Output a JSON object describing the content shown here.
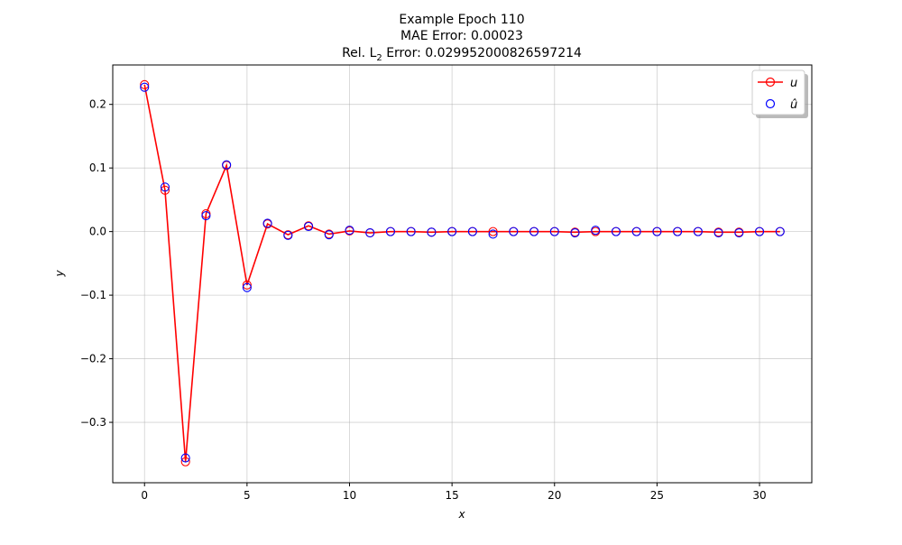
{
  "chart_data": {
    "type": "line",
    "title_lines": [
      "Example Epoch 110",
      "MAE Error: 0.00023",
      "Rel. L",
      "2",
      " Error: 0.029952000826597214"
    ],
    "xlabel": "x",
    "ylabel": "y",
    "xlim": [
      -1.55,
      32.55
    ],
    "ylim": [
      -0.395,
      0.262
    ],
    "x_ticks": [
      0,
      5,
      10,
      15,
      20,
      25,
      30
    ],
    "x_tick_labels": [
      "0",
      "5",
      "10",
      "15",
      "20",
      "25",
      "30"
    ],
    "y_ticks": [
      -0.3,
      -0.2,
      -0.1,
      0.0,
      0.1,
      0.2
    ],
    "y_tick_labels": [
      "−0.3",
      "−0.2",
      "−0.1",
      "0.0",
      "0.1",
      "0.2"
    ],
    "grid": true,
    "legend_position": "top-right",
    "x": [
      0,
      1,
      2,
      3,
      4,
      5,
      6,
      7,
      8,
      9,
      10,
      11,
      12,
      13,
      14,
      15,
      16,
      17,
      18,
      19,
      20,
      21,
      22,
      23,
      24,
      25,
      26,
      27,
      28,
      29,
      30,
      31
    ],
    "series": [
      {
        "name": "u",
        "style": "line-with-open-circles",
        "color": "#ff0000",
        "values": [
          0.231,
          0.065,
          -0.362,
          0.028,
          0.104,
          -0.084,
          0.012,
          -0.005,
          0.009,
          -0.004,
          0.001,
          -0.002,
          0.0,
          0.0,
          -0.001,
          0.0,
          0.0,
          0.0,
          0.0,
          0.0,
          0.0,
          -0.001,
          0.0,
          0.0,
          0.0,
          0.0,
          0.0,
          0.0,
          -0.001,
          -0.001,
          0.0,
          0.0
        ]
      },
      {
        "name": "û",
        "style": "open-circles",
        "color": "#0000ff",
        "values": [
          0.227,
          0.07,
          -0.356,
          0.025,
          0.105,
          -0.088,
          0.013,
          -0.006,
          0.008,
          -0.005,
          0.002,
          -0.002,
          0.0,
          0.0,
          -0.001,
          0.0,
          0.0,
          -0.004,
          0.0,
          0.0,
          0.0,
          -0.002,
          0.002,
          0.0,
          0.0,
          0.0,
          0.0,
          0.0,
          -0.002,
          -0.002,
          0.0,
          0.0
        ]
      }
    ]
  }
}
